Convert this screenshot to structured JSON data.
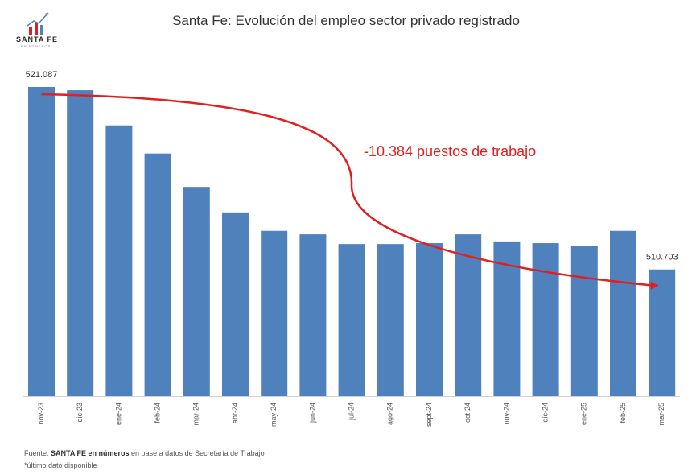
{
  "header": {
    "title": "Santa Fe: Evolución del empleo sector privado registrado",
    "logo_text": "SANTA FE",
    "logo_sub": "EN NÚMEROS"
  },
  "footer": {
    "source_prefix": "Fuente: ",
    "source_brand": "SANTA FE en números",
    "source_suffix": " en base a datos de Secretaría de Trabajo",
    "note": "*último dato disponible"
  },
  "colors": {
    "bar": "#4f81bd",
    "arrow": "#e02020",
    "baseline": "#d0d0d0"
  },
  "chart_data": {
    "type": "bar",
    "title": "Santa Fe: Evolución del empleo sector privado registrado",
    "categories": [
      "nov-23",
      "dic-23",
      "ene-24",
      "feb-24",
      "mar-24",
      "abr-24",
      "may-24",
      "jun-24",
      "jul-24",
      "ago-24",
      "sept-24",
      "oct-24",
      "nov-24",
      "dic-24",
      "ene-25",
      "feb-25",
      "mar-25"
    ],
    "values": [
      521087,
      520900,
      518900,
      517300,
      515400,
      513950,
      512900,
      512700,
      512150,
      512150,
      512200,
      512700,
      512300,
      512200,
      512050,
      512900,
      510703
    ],
    "data_labels": [
      {
        "category": "nov-23",
        "text": "521.087"
      },
      {
        "category": "mar-25",
        "text": "510.703"
      }
    ],
    "annotation": "-10.384 puestos de trabajo",
    "xlabel": "",
    "ylabel": "",
    "grid": false,
    "legend": "none"
  }
}
